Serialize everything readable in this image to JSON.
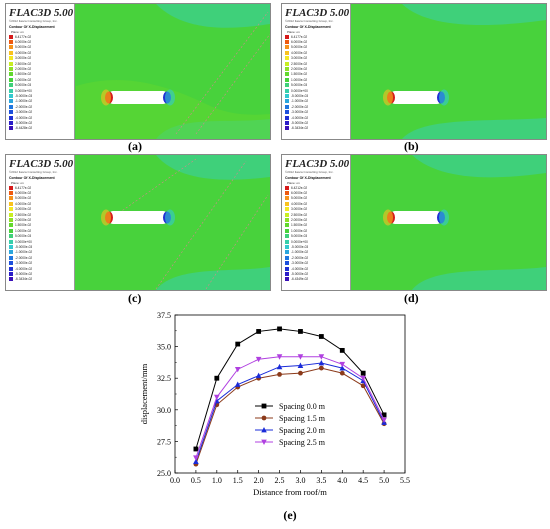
{
  "software_title": "FLAC3D 5.00",
  "copyright": "©2012 Itasca Consulting Group, Inc.",
  "contour_title": "Contour Of X-Displacement",
  "plane_label": "Plane: on",
  "panels": [
    {
      "label": "(a)",
      "legend": [
        "6.4177e-02",
        "6.0000e-02",
        "5.0000e-02",
        "4.0000e-02",
        "3.0000e-02",
        "2.5000e-02",
        "2.0000e-02",
        "1.5000e-02",
        "1.0000e-02",
        "5.0000e-03",
        "0.0000e+00",
        "-5.0000e-03",
        "-1.0000e-02",
        "-2.0000e-02",
        "-3.0000e-02",
        "-4.0000e-02",
        "-5.0000e-02",
        "-6.4428e-02"
      ]
    },
    {
      "label": "(b)",
      "legend": [
        "6.4177e-02",
        "6.0000e-02",
        "5.0000e-02",
        "4.0000e-02",
        "3.0000e-02",
        "2.5000e-02",
        "2.0000e-02",
        "1.5000e-02",
        "1.0000e-02",
        "5.0000e-03",
        "0.0000e+00",
        "-5.0000e-03",
        "-1.0000e-02",
        "-2.0000e-02",
        "-3.0000e-02",
        "-4.0000e-02",
        "-5.0000e-02",
        "-6.3434e-02"
      ]
    },
    {
      "label": "(c)",
      "legend": [
        "6.4177e-02",
        "6.0000e-02",
        "5.0000e-02",
        "4.0000e-02",
        "3.0000e-02",
        "2.5000e-02",
        "2.0000e-02",
        "1.5000e-02",
        "1.0000e-02",
        "5.0000e-03",
        "0.0000e+00",
        "-5.0000e-03",
        "-1.0000e-02",
        "-2.0000e-02",
        "-3.0000e-02",
        "-4.0000e-02",
        "-5.0000e-02",
        "-6.3434e-02"
      ]
    },
    {
      "label": "(d)",
      "legend": [
        "6.4212e-02",
        "6.0000e-02",
        "5.0000e-02",
        "4.0000e-02",
        "3.0000e-02",
        "2.5000e-02",
        "2.0000e-02",
        "1.5000e-02",
        "1.0000e-02",
        "5.0000e-03",
        "0.0000e+00",
        "-5.0000e-03",
        "-1.0000e-02",
        "-2.0000e-02",
        "-3.0000e-02",
        "-4.0000e-02",
        "-5.0000e-02",
        "-6.4349e-02"
      ]
    }
  ],
  "legend_colors": [
    "#d61b1b",
    "#ee5a10",
    "#f7921a",
    "#f9c21e",
    "#f3e822",
    "#c8ee22",
    "#8fe028",
    "#62d82e",
    "#48d23c",
    "#3fd07a",
    "#37cfaa",
    "#33c9cf",
    "#2aa6dd",
    "#2077e0",
    "#1c4fdc",
    "#1f2fd4",
    "#2a1cc8",
    "#3a10b8"
  ],
  "colors": {
    "field_green": "#48d23c",
    "zone_light": "#3fd07a",
    "zone_mid": "#62d82e",
    "grid_line": "#d28a8a",
    "excavation": "#ffffff"
  },
  "chart_data": {
    "type": "line",
    "label": "(e)",
    "xlabel": "Distance from roof/m",
    "ylabel": "displacement/mm",
    "xlim": [
      0.0,
      5.5
    ],
    "ylim": [
      25.0,
      37.5
    ],
    "xticks": [
      "0.0",
      "0.5",
      "1.0",
      "1.5",
      "2.0",
      "2.5",
      "3.0",
      "3.5",
      "4.0",
      "4.5",
      "5.0",
      "5.5"
    ],
    "yticks": [
      "25.0",
      "27.5",
      "30.0",
      "32.5",
      "35.0",
      "37.5"
    ],
    "grid": false,
    "legend_position": "inside-left",
    "x": [
      0.5,
      1.0,
      1.5,
      2.0,
      2.5,
      3.0,
      3.5,
      4.0,
      4.5,
      5.0
    ],
    "series": [
      {
        "name": "Spacing 0.0 m",
        "color": "#000000",
        "marker": "square",
        "values": [
          26.9,
          32.5,
          35.2,
          36.2,
          36.4,
          36.2,
          35.8,
          34.7,
          32.9,
          29.6
        ]
      },
      {
        "name": "Spacing 1.5 m",
        "color": "#8b3a1a",
        "marker": "circle",
        "values": [
          25.7,
          30.4,
          31.8,
          32.5,
          32.8,
          32.9,
          33.3,
          32.9,
          31.9,
          28.9
        ]
      },
      {
        "name": "Spacing 2.0 m",
        "color": "#1a2bd8",
        "marker": "triangle-up",
        "values": [
          25.9,
          30.7,
          32.0,
          32.7,
          33.4,
          33.5,
          33.7,
          33.3,
          32.3,
          29.0
        ]
      },
      {
        "name": "Spacing 2.5 m",
        "color": "#b040e0",
        "marker": "triangle-down",
        "values": [
          26.2,
          31.0,
          33.2,
          34.0,
          34.2,
          34.2,
          34.2,
          33.6,
          32.5,
          29.2
        ]
      }
    ]
  }
}
